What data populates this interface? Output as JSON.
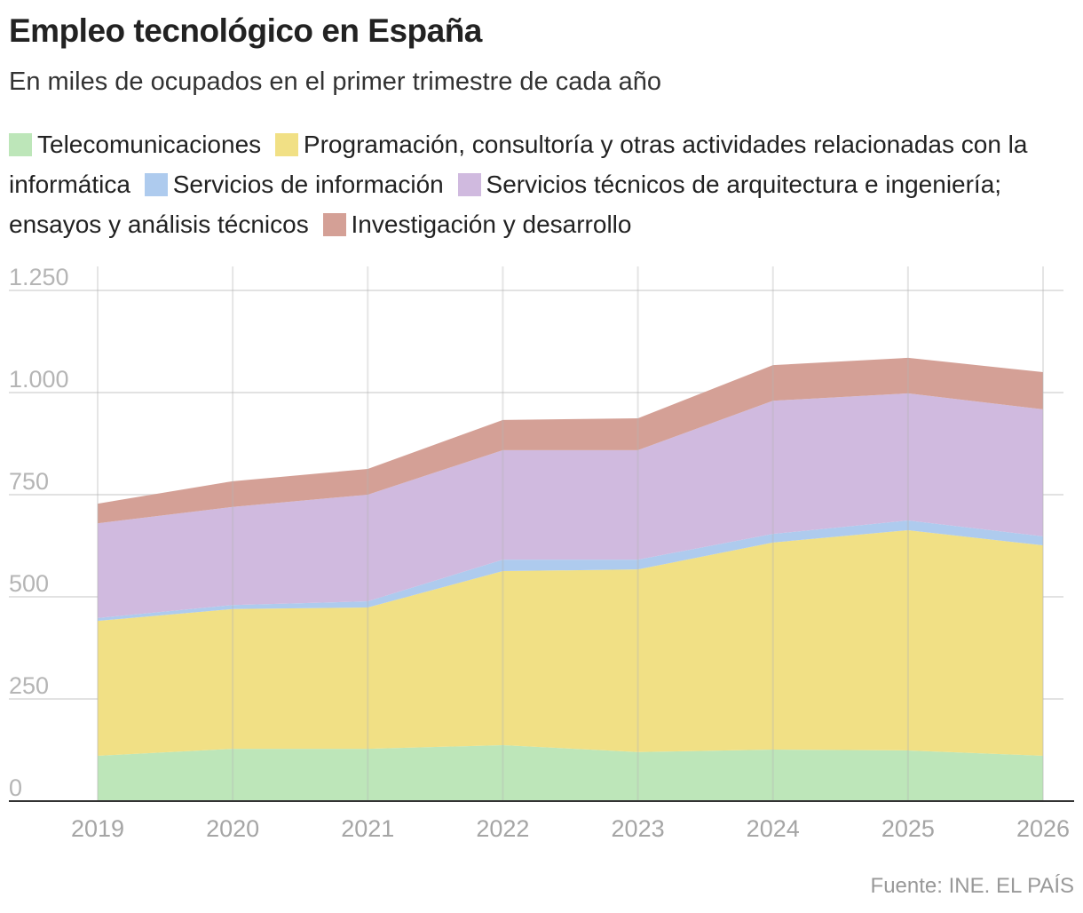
{
  "title": "Empleo tecnológico en España",
  "subtitle": "En miles de ocupados en el primer trimestre de cada año",
  "source": "Fuente: INE. EL PAÍS",
  "chart_data": {
    "type": "area",
    "stacked": true,
    "title": "Empleo tecnológico en España",
    "subtitle": "En miles de ocupados en el primer trimestre de cada año",
    "x": [
      "2019",
      "2020",
      "2021",
      "2022",
      "2023",
      "2024",
      "2025",
      "2026"
    ],
    "ylim": [
      0,
      1250
    ],
    "yticks": [
      0,
      250,
      500,
      750,
      1000,
      1250
    ],
    "ytick_labels": [
      "0",
      "250",
      "500",
      "750",
      "1.000",
      "1.250"
    ],
    "grid": true,
    "legend": "top",
    "series": [
      {
        "name": "Telecomunicaciones",
        "color": "#bde6b9",
        "values": [
          111,
          128,
          128,
          137,
          120,
          126,
          124,
          111
        ]
      },
      {
        "name": "Programación, consultoría y otras actividades relacionadas con la informática",
        "color": "#f1e085",
        "values": [
          330,
          342,
          346,
          426,
          447,
          507,
          539,
          515
        ]
      },
      {
        "name": "Servicios de información",
        "color": "#aecbee",
        "values": [
          7,
          10,
          15,
          28,
          24,
          21,
          24,
          22
        ]
      },
      {
        "name": "Servicios técnicos de arquitectura e ingeniería; ensayos y análisis técnicos",
        "color": "#d0badf",
        "values": [
          232,
          240,
          261,
          268,
          268,
          326,
          311,
          311
        ]
      },
      {
        "name": "Investigación y desarrollo",
        "color": "#d4a096",
        "values": [
          48,
          63,
          63,
          74,
          78,
          87,
          87,
          91
        ]
      }
    ]
  }
}
